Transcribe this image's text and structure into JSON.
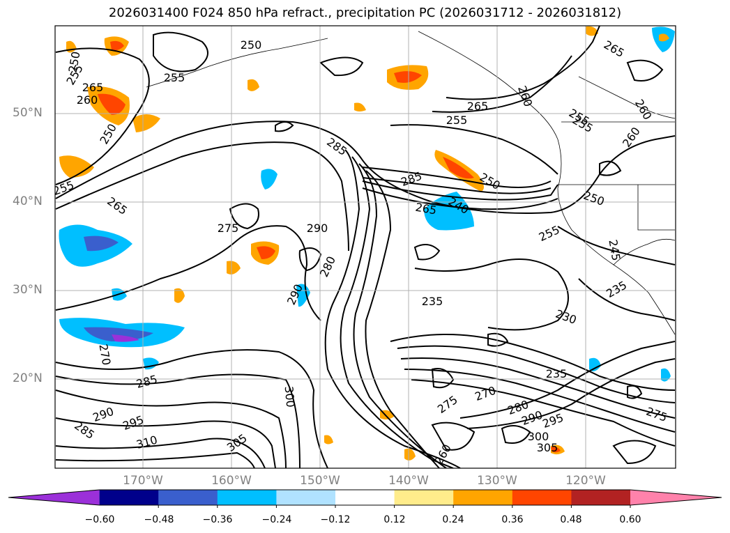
{
  "title": "2026031400 F024 850 hPa refract., precipitation PC (2026031712 - 2026031812)",
  "lat_labels": [
    "50°N",
    "40°N",
    "30°N",
    "20°N"
  ],
  "lon_labels": [
    "170°W",
    "160°W",
    "150°W",
    "140°W",
    "130°W",
    "120°W"
  ],
  "contour_labels": [
    "250",
    "255",
    "265",
    "260",
    "250",
    "255",
    "265",
    "275",
    "290",
    "285",
    "250",
    "255",
    "265",
    "240",
    "285",
    "265",
    "255",
    "260",
    "265",
    "260",
    "255",
    "250",
    "280",
    "290",
    "235",
    "230",
    "235",
    "270",
    "285",
    "290",
    "295",
    "285",
    "310",
    "300",
    "305",
    "260",
    "275",
    "270",
    "280",
    "290",
    "295",
    "300",
    "305",
    "275",
    "260",
    "255",
    "255",
    "250",
    "245",
    "235"
  ],
  "colorbar": {
    "tick_labels": [
      "−0.60",
      "−0.48",
      "−0.36",
      "−0.24",
      "−0.12",
      "0.12",
      "0.24",
      "0.36",
      "0.48",
      "0.60"
    ],
    "colors": [
      "#9b30d9",
      "#00008b",
      "#3a5fcd",
      "#00bfff",
      "#b0e2ff",
      "#ffffff",
      "#ffec8b",
      "#ffa500",
      "#ff4500",
      "#b22222",
      "#ff82ab"
    ]
  }
}
